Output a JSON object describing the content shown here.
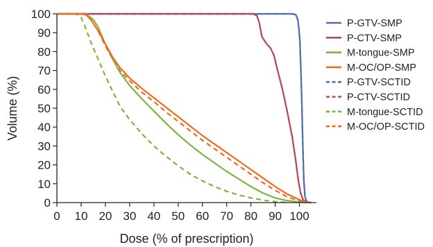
{
  "chart_data": {
    "type": "line",
    "title": "",
    "xlabel": "Dose (% of prescription)",
    "ylabel": "Volume (%)",
    "xlim": [
      0,
      107
    ],
    "ylim": [
      0,
      100
    ],
    "xticks": [
      0,
      10,
      20,
      30,
      40,
      50,
      60,
      70,
      80,
      90,
      100
    ],
    "yticks": [
      0,
      10,
      20,
      30,
      40,
      50,
      60,
      70,
      80,
      90,
      100
    ],
    "grid": false,
    "legend_position": "right",
    "series": [
      {
        "name": "P-GTV-SMP",
        "color": "#4f6ea8",
        "dash": "solid",
        "points": [
          [
            0,
            100
          ],
          [
            97,
            100
          ],
          [
            98.5,
            99.6
          ],
          [
            99.3,
            97
          ],
          [
            99.8,
            92
          ],
          [
            100.2,
            85
          ],
          [
            100.6,
            70
          ],
          [
            101,
            52
          ],
          [
            101.4,
            30
          ],
          [
            101.8,
            12
          ],
          [
            102.3,
            3
          ],
          [
            103,
            0.5
          ],
          [
            104,
            0
          ]
        ]
      },
      {
        "name": "P-CTV-SMP",
        "color": "#b5495b",
        "dash": "solid",
        "points": [
          [
            0,
            100
          ],
          [
            81,
            100
          ],
          [
            82.5,
            99
          ],
          [
            83.5,
            95
          ],
          [
            84.5,
            88
          ],
          [
            85.5,
            86
          ],
          [
            86.5,
            84
          ],
          [
            88,
            82
          ],
          [
            89.5,
            78
          ],
          [
            91,
            70
          ],
          [
            93,
            60
          ],
          [
            95,
            48
          ],
          [
            97,
            35
          ],
          [
            98.5,
            22
          ],
          [
            99.5,
            12
          ],
          [
            100.5,
            5
          ],
          [
            101.5,
            1.5
          ],
          [
            103,
            0
          ]
        ]
      },
      {
        "name": "M-tongue-SMP",
        "color": "#7cb342",
        "dash": "solid",
        "points": [
          [
            0,
            100
          ],
          [
            12,
            99.8
          ],
          [
            15,
            97
          ],
          [
            17,
            93
          ],
          [
            20,
            84
          ],
          [
            23,
            76
          ],
          [
            26,
            69
          ],
          [
            30,
            62
          ],
          [
            35,
            55
          ],
          [
            40,
            48.5
          ],
          [
            45,
            42
          ],
          [
            50,
            36
          ],
          [
            55,
            30.5
          ],
          [
            60,
            25.5
          ],
          [
            65,
            21
          ],
          [
            70,
            16.5
          ],
          [
            75,
            12.5
          ],
          [
            80,
            8.5
          ],
          [
            85,
            5
          ],
          [
            90,
            2.5
          ],
          [
            95,
            1
          ],
          [
            100,
            0.3
          ],
          [
            103,
            0
          ]
        ]
      },
      {
        "name": "M-OC/OP-SMP",
        "color": "#f06a1f",
        "dash": "solid",
        "points": [
          [
            0,
            100
          ],
          [
            10,
            100
          ],
          [
            12,
            99.5
          ],
          [
            14,
            97
          ],
          [
            17,
            91
          ],
          [
            20,
            84
          ],
          [
            23,
            77
          ],
          [
            26,
            71.5
          ],
          [
            30,
            66
          ],
          [
            35,
            60.5
          ],
          [
            40,
            55.5
          ],
          [
            45,
            50.5
          ],
          [
            50,
            45.5
          ],
          [
            55,
            40.5
          ],
          [
            60,
            35.5
          ],
          [
            65,
            31
          ],
          [
            70,
            26.5
          ],
          [
            75,
            22
          ],
          [
            80,
            17.5
          ],
          [
            85,
            13
          ],
          [
            90,
            8.5
          ],
          [
            95,
            4.5
          ],
          [
            100,
            1.5
          ],
          [
            103,
            0.3
          ],
          [
            105,
            0
          ]
        ]
      },
      {
        "name": "P-GTV-SCTID",
        "color": "#4f6ea8",
        "dash": "dashed",
        "points": [
          [
            0,
            100
          ],
          [
            97,
            100
          ],
          [
            98.5,
            99.6
          ],
          [
            99.3,
            97
          ],
          [
            99.8,
            92
          ],
          [
            100.2,
            85
          ],
          [
            100.6,
            70
          ],
          [
            101,
            52
          ],
          [
            101.4,
            30
          ],
          [
            101.8,
            12
          ],
          [
            102.3,
            3
          ],
          [
            103,
            0.5
          ],
          [
            104,
            0
          ]
        ]
      },
      {
        "name": "P-CTV-SCTID",
        "color": "#b5495b",
        "dash": "dashed",
        "points": [
          [
            0,
            100
          ],
          [
            81,
            100
          ],
          [
            82.5,
            99
          ],
          [
            83.5,
            95
          ],
          [
            84.5,
            88
          ],
          [
            85.5,
            86
          ],
          [
            86.5,
            84
          ],
          [
            88,
            82
          ],
          [
            89.5,
            78
          ],
          [
            91,
            70
          ],
          [
            93,
            60
          ],
          [
            95,
            48
          ],
          [
            97,
            35
          ],
          [
            98.5,
            22
          ],
          [
            99.5,
            12
          ],
          [
            100.5,
            5
          ],
          [
            101.5,
            1.5
          ],
          [
            103,
            0
          ]
        ]
      },
      {
        "name": "M-tongue-SCTID",
        "color": "#7cb342",
        "dash": "dashed",
        "points": [
          [
            0,
            100
          ],
          [
            8,
            100
          ],
          [
            10,
            98
          ],
          [
            12,
            92
          ],
          [
            14,
            85
          ],
          [
            17,
            76
          ],
          [
            20,
            67
          ],
          [
            23,
            59
          ],
          [
            26,
            51
          ],
          [
            30,
            44
          ],
          [
            35,
            36.5
          ],
          [
            40,
            30
          ],
          [
            45,
            24.5
          ],
          [
            50,
            19.5
          ],
          [
            55,
            15
          ],
          [
            60,
            11.5
          ],
          [
            65,
            8.5
          ],
          [
            70,
            6
          ],
          [
            75,
            4
          ],
          [
            80,
            2.5
          ],
          [
            85,
            1.3
          ],
          [
            90,
            0.5
          ],
          [
            95,
            0
          ]
        ]
      },
      {
        "name": "M-OC/OP-SCTID",
        "color": "#f06a1f",
        "dash": "dashed",
        "points": [
          [
            0,
            100
          ],
          [
            10,
            100
          ],
          [
            12,
            99.5
          ],
          [
            14,
            97
          ],
          [
            17,
            91
          ],
          [
            20,
            83
          ],
          [
            23,
            76
          ],
          [
            26,
            70
          ],
          [
            30,
            64.5
          ],
          [
            35,
            58.5
          ],
          [
            40,
            53.5
          ],
          [
            45,
            48
          ],
          [
            50,
            43
          ],
          [
            55,
            38
          ],
          [
            60,
            33
          ],
          [
            65,
            28.5
          ],
          [
            70,
            24
          ],
          [
            75,
            19.5
          ],
          [
            80,
            15
          ],
          [
            85,
            10.5
          ],
          [
            90,
            6.5
          ],
          [
            95,
            3
          ],
          [
            100,
            0.8
          ],
          [
            102,
            0
          ]
        ]
      }
    ]
  }
}
